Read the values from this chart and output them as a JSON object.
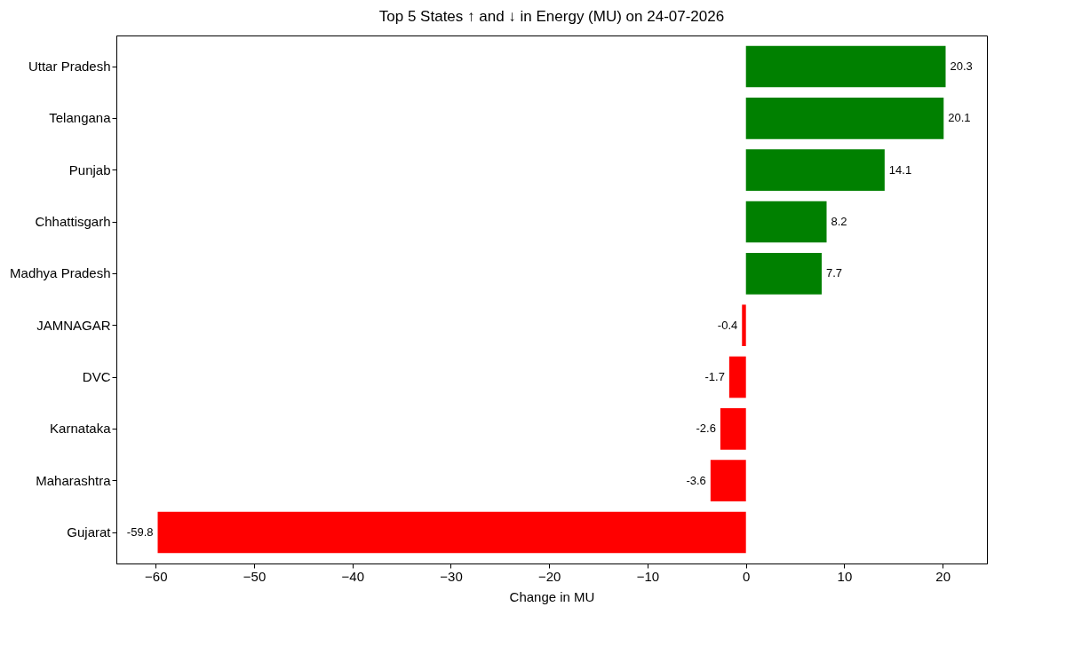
{
  "chart_data": {
    "type": "bar",
    "orientation": "horizontal",
    "title": "Top 5 States ↑ and ↓ in Energy (MU) on 24-07-2026",
    "xlabel": "Change in MU",
    "categories": [
      "Uttar Pradesh",
      "Telangana",
      "Punjab",
      "Chhattisgarh",
      "Madhya Pradesh",
      "JAMNAGAR",
      "DVC",
      "Karnataka",
      "Maharashtra",
      "Gujarat"
    ],
    "values": [
      20.3,
      20.1,
      14.1,
      8.2,
      7.7,
      -0.4,
      -1.7,
      -2.6,
      -3.6,
      -59.8
    ],
    "colors": [
      "#008000",
      "#008000",
      "#008000",
      "#008000",
      "#008000",
      "#ff0000",
      "#ff0000",
      "#ff0000",
      "#ff0000",
      "#ff0000"
    ],
    "xlim": [
      -64,
      24.5
    ],
    "xticks": [
      -60,
      -50,
      -40,
      -30,
      -20,
      -10,
      0,
      10,
      20
    ],
    "data_labels": true,
    "grid": false
  }
}
